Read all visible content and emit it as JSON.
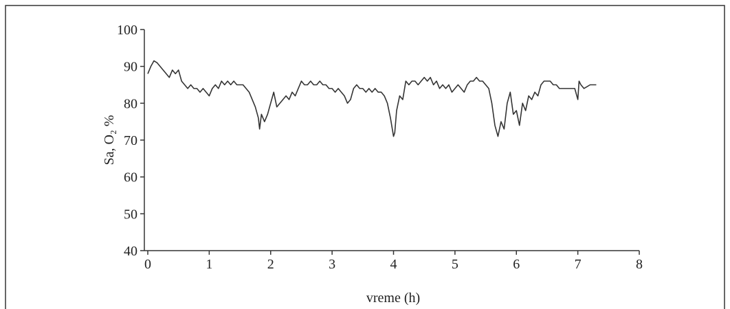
{
  "chart_data": {
    "type": "line",
    "xlabel": "vreme (h)",
    "ylabel": "Sa, O₂ %",
    "x": [
      0,
      0.05,
      0.1,
      0.15,
      0.2,
      0.25,
      0.3,
      0.35,
      0.4,
      0.45,
      0.5,
      0.55,
      0.6,
      0.65,
      0.7,
      0.75,
      0.8,
      0.85,
      0.9,
      0.95,
      1.0,
      1.05,
      1.1,
      1.15,
      1.2,
      1.25,
      1.3,
      1.35,
      1.4,
      1.45,
      1.5,
      1.55,
      1.6,
      1.65,
      1.7,
      1.75,
      1.8,
      1.82,
      1.85,
      1.9,
      1.95,
      2.0,
      2.05,
      2.1,
      2.15,
      2.2,
      2.25,
      2.3,
      2.35,
      2.4,
      2.45,
      2.5,
      2.55,
      2.6,
      2.65,
      2.7,
      2.75,
      2.8,
      2.85,
      2.9,
      2.95,
      3.0,
      3.05,
      3.1,
      3.15,
      3.2,
      3.25,
      3.3,
      3.35,
      3.4,
      3.45,
      3.5,
      3.55,
      3.6,
      3.65,
      3.7,
      3.75,
      3.8,
      3.85,
      3.9,
      3.95,
      4.0,
      4.02,
      4.05,
      4.1,
      4.15,
      4.2,
      4.25,
      4.3,
      4.35,
      4.4,
      4.45,
      4.5,
      4.55,
      4.6,
      4.65,
      4.7,
      4.75,
      4.8,
      4.85,
      4.9,
      4.95,
      5.0,
      5.05,
      5.1,
      5.15,
      5.2,
      5.25,
      5.3,
      5.35,
      5.4,
      5.45,
      5.5,
      5.55,
      5.6,
      5.65,
      5.7,
      5.75,
      5.8,
      5.85,
      5.9,
      5.95,
      6.0,
      6.05,
      6.1,
      6.15,
      6.2,
      6.25,
      6.3,
      6.35,
      6.4,
      6.45,
      6.5,
      6.55,
      6.6,
      6.65,
      6.7,
      6.8,
      6.9,
      6.95,
      7.0,
      7.02,
      7.05,
      7.1,
      7.2,
      7.3
    ],
    "series": [
      {
        "color": "#333333",
        "values": [
          88,
          90,
          91.5,
          91,
          90,
          89,
          88,
          87,
          89,
          88,
          89,
          86,
          85,
          84,
          85,
          84,
          84,
          83,
          84,
          83,
          82,
          84,
          85,
          84,
          86,
          85,
          86,
          85,
          86,
          85,
          85,
          85,
          84,
          83,
          81,
          79,
          76,
          73,
          77,
          75,
          77,
          80,
          83,
          79,
          80,
          81,
          82,
          81,
          83,
          82,
          84,
          86,
          85,
          85,
          86,
          85,
          85,
          86,
          85,
          85,
          84,
          84,
          83,
          84,
          83,
          82,
          80,
          81,
          84,
          85,
          84,
          84,
          83,
          84,
          83,
          84,
          83,
          83,
          82,
          80,
          76,
          71,
          72,
          78,
          82,
          81,
          86,
          85,
          86,
          86,
          85,
          86,
          87,
          86,
          87,
          85,
          86,
          84,
          85,
          84,
          85,
          83,
          84,
          85,
          84,
          83,
          85,
          86,
          86,
          87,
          86,
          86,
          85,
          84,
          80,
          74,
          71,
          75,
          73,
          80,
          83,
          77,
          78,
          74,
          80,
          78,
          82,
          81,
          83,
          82,
          85,
          86,
          86,
          86,
          85,
          85,
          84,
          84,
          84,
          84,
          81,
          86,
          85,
          84,
          85,
          85
        ]
      }
    ],
    "xlim": [
      0,
      8
    ],
    "xticks": [
      0,
      1,
      2,
      3,
      4,
      5,
      6,
      7,
      8
    ],
    "ylim": [
      40,
      100
    ],
    "yticks": [
      40,
      50,
      60,
      70,
      80,
      90,
      100
    ]
  }
}
